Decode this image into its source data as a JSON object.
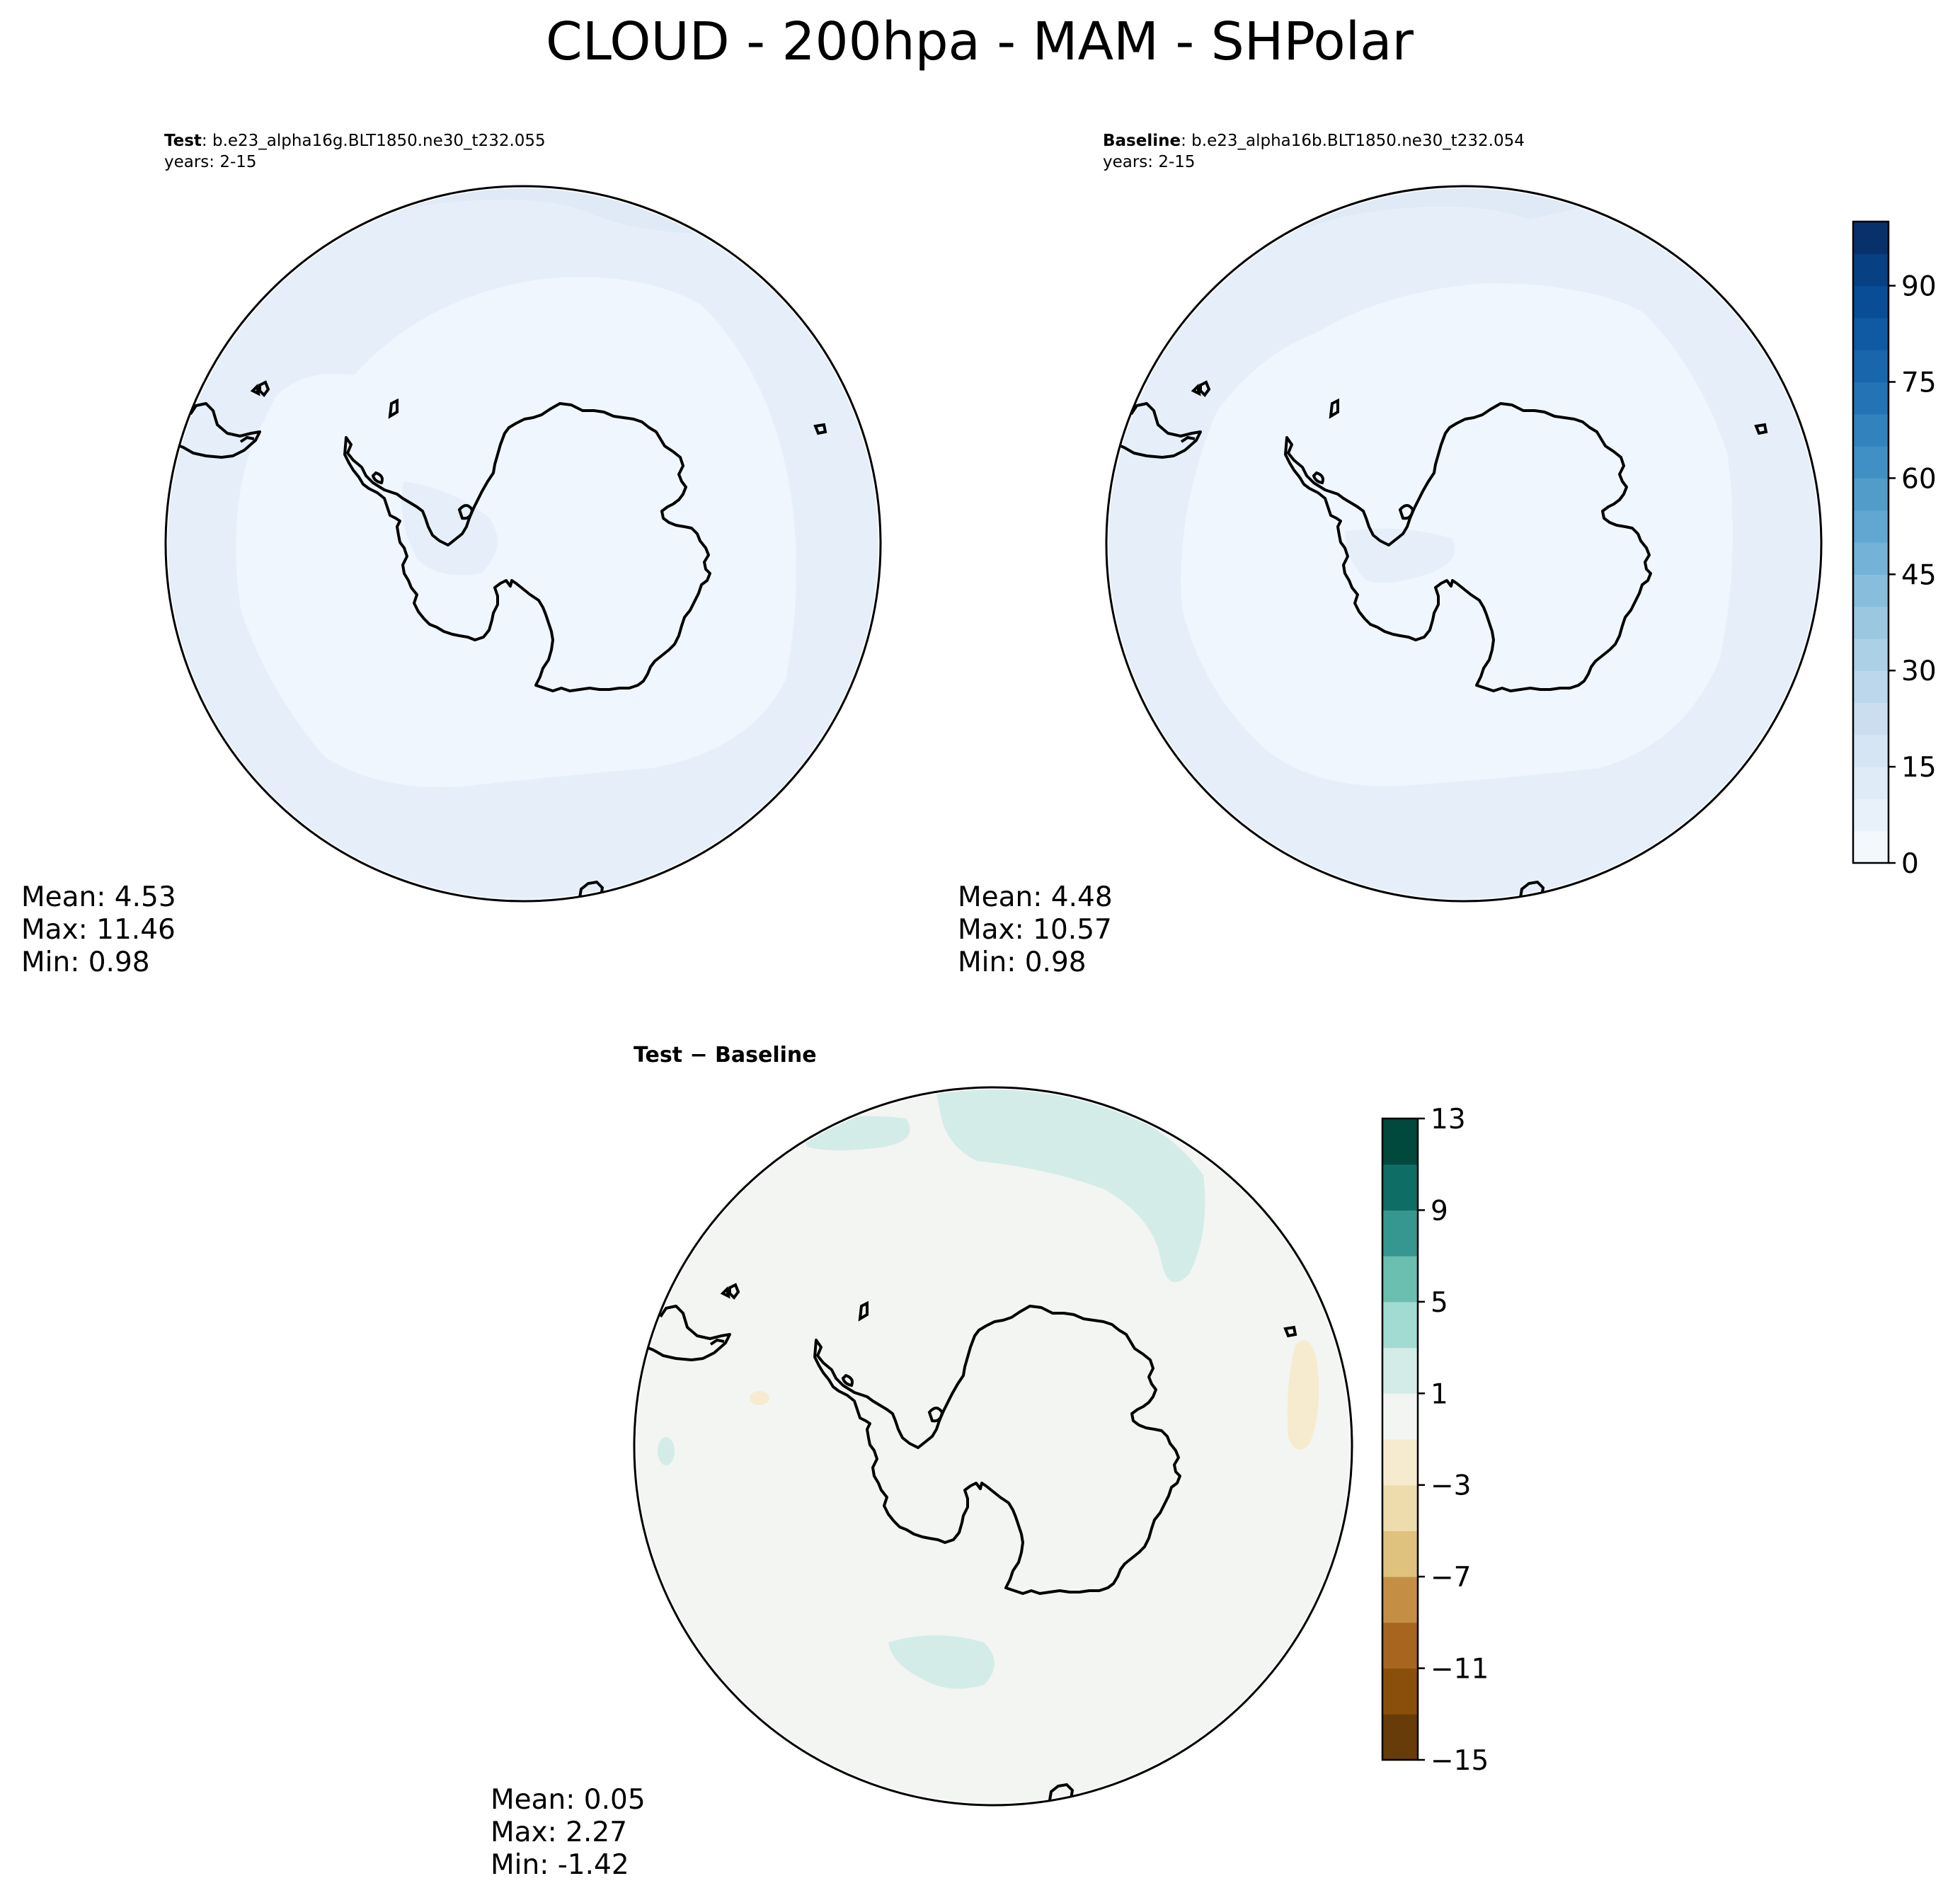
{
  "figure": {
    "title": "CLOUD - 200hpa - MAM - SHPolar"
  },
  "panels": [
    {
      "id": "test",
      "label_bold": "Test",
      "label_rest": ": b.e23_alpha16g.BLT1850.ne30_t232.055",
      "years": "years: 2-15",
      "stats": {
        "mean": "Mean:  4.53",
        "max": "Max: 11.46",
        "min": "Min:  0.98"
      }
    },
    {
      "id": "baseline",
      "label_bold": "Baseline",
      "label_rest": ": b.e23_alpha16b.BLT1850.ne30_t232.054",
      "years": "years: 2-15",
      "stats": {
        "mean": "Mean:  4.48",
        "max": "Max: 10.57",
        "min": "Min:  0.98"
      }
    },
    {
      "id": "diff",
      "label": "Test − Baseline",
      "stats": {
        "mean": "Mean:  0.05",
        "max": "Max:  2.27",
        "min": "Min: -1.42"
      }
    }
  ],
  "colorbars": {
    "absolute": {
      "range": [
        0,
        100
      ],
      "tick_values": [
        0,
        15,
        30,
        45,
        60,
        75,
        90
      ],
      "tick_labels": [
        "0",
        "15",
        "30",
        "45",
        "60",
        "75",
        "90"
      ],
      "colors": [
        "#f3f8fd",
        "#e8f1fa",
        "#dfebf7",
        "#d5e5f4",
        "#cadef0",
        "#bcd7eb",
        "#acd0e6",
        "#9bc7e1",
        "#88bedc",
        "#74b2d8",
        "#62a7d2",
        "#519cc9",
        "#4090c5",
        "#3282bd",
        "#2473b5",
        "#1966ad",
        "#0f5aa3",
        "#084d96",
        "#084084",
        "#08306b"
      ]
    },
    "difference": {
      "range": [
        -15,
        13
      ],
      "tick_values": [
        -15,
        -11,
        -7,
        -3,
        1,
        5,
        9,
        13
      ],
      "tick_labels": [
        "−15",
        "−11",
        "−7",
        "−3",
        "1",
        "5",
        "9",
        "13"
      ],
      "colors": [
        "#673c08",
        "#8a500b",
        "#a6661f",
        "#c48e44",
        "#dfc27d",
        "#eedcad",
        "#f6ebcf",
        "#f3f5f3",
        "#d4ece8",
        "#a2dbd1",
        "#6bbfb0",
        "#35978f",
        "#0e6d65",
        "#01493d"
      ]
    }
  },
  "map": {
    "projection": "south polar stereographic",
    "absolute_field_colors": {
      "interior": "#f0f6fd",
      "outer_band": "#e6eff9",
      "rim": "#dfeaf6"
    },
    "difference_field_colors": {
      "background": "#f3f5f3",
      "positive_patch": "#d4ece8",
      "negative_patch": "#f6ebcf"
    },
    "coastline_color": "#000000"
  }
}
